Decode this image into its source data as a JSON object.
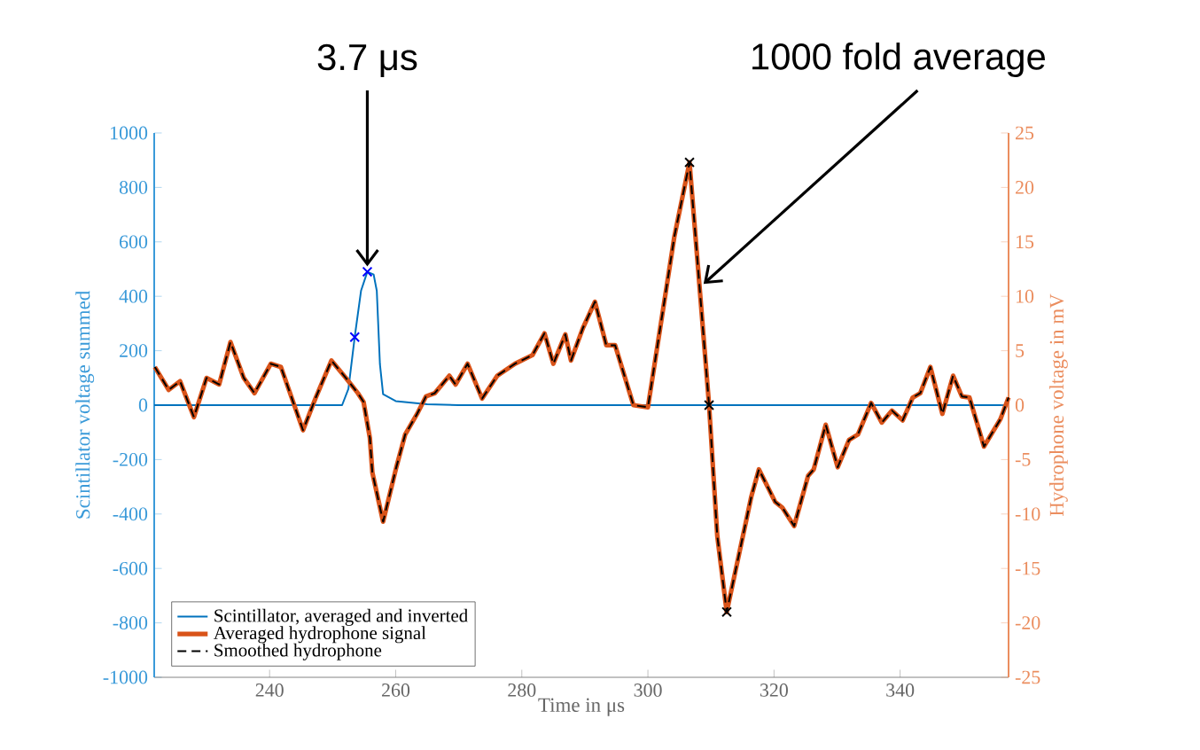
{
  "chart_data": {
    "type": "line",
    "xlabel": "Time in μs",
    "ylabel": "Scintillator voltage summed",
    "y2label": "Hydrophone voltage in mV",
    "annotations": [
      {
        "text": "3.7 μs",
        "x": 255.5,
        "y": 490
      },
      {
        "text": "1000 fold average",
        "x": 308.2,
        "y": 432
      }
    ],
    "xlim": [
      221.7,
      357.2
    ],
    "xticks": [
      240,
      260,
      280,
      300,
      320,
      340
    ],
    "ylim": [
      -1000,
      1000
    ],
    "yticks": [
      -1000,
      -800,
      -600,
      -400,
      -200,
      0,
      200,
      400,
      600,
      800,
      1000
    ],
    "y2lim": [
      -25,
      25
    ],
    "y2ticks": [
      -25,
      -20,
      -15,
      -10,
      -5,
      0,
      5,
      10,
      15,
      20,
      25
    ],
    "grid": false,
    "legend": "bottom left",
    "series": [
      {
        "name": "Scintillator, averaged and inverted",
        "color": "#0072bd",
        "x": [
          221.7,
          251.5,
          252.5,
          253.5,
          254.5,
          255.5,
          256.5,
          257,
          257.5,
          258,
          260,
          265,
          270,
          357.2
        ],
        "values": [
          0,
          0,
          60,
          250,
          420,
          490,
          480,
          420,
          150,
          40,
          15,
          3,
          0,
          0
        ]
      },
      {
        "name": "Averaged hydrophone signal",
        "color": "#d95319",
        "axis": "y2",
        "x": [
          221.8,
          224,
          225.8,
          228,
          230,
          232,
          233.8,
          235.9,
          237.6,
          240.2,
          241.8,
          245.3,
          247.4,
          249.8,
          252.1,
          254,
          254.9,
          255.9,
          256.3,
          258,
          260.1,
          261.5,
          263.4,
          264.8,
          266.2,
          268.5,
          269.5,
          271.4,
          273.7,
          276.1,
          278.9,
          281.7,
          283.6,
          285,
          286.9,
          287.8,
          289.7,
          291.6,
          293.4,
          294.8,
          297.7,
          300,
          304.2,
          306.6,
          309.7,
          311,
          312.5,
          316.4,
          317.6,
          320.2,
          321.3,
          323.2,
          325.4,
          326.3,
          328.2,
          330.1,
          331.9,
          333.3,
          335.4,
          337.1,
          338.7,
          340.4,
          342,
          343.2,
          344.8,
          346.7,
          348.4,
          349.8,
          351,
          353.3,
          355.9,
          357.2
        ],
        "values": [
          3.5,
          1.4,
          2.2,
          -1.1,
          2.5,
          1.9,
          5.8,
          2.5,
          1.1,
          3.8,
          3.5,
          -2.3,
          0.8,
          4.1,
          2.5,
          1.1,
          0.3,
          -3,
          -6.2,
          -10.7,
          -5.7,
          -2.7,
          -0.8,
          0.8,
          1.1,
          2.7,
          1.9,
          3.8,
          0.6,
          2.7,
          3.8,
          4.6,
          6.6,
          3.8,
          6.5,
          4.1,
          7.1,
          9.5,
          5.5,
          5.5,
          0,
          -0.2,
          15.5,
          22.3,
          0,
          -12,
          -19,
          -8.4,
          -5.9,
          -8.9,
          -9.4,
          -11.1,
          -6.5,
          -5.9,
          -1.8,
          -5.7,
          -3.2,
          -2.7,
          0.2,
          -1.6,
          -0.5,
          -1.4,
          0.7,
          1.1,
          3.5,
          -0.8,
          2.7,
          0.8,
          0.7,
          -3.8,
          -1.3,
          0.7
        ]
      },
      {
        "name": "Smoothed hydrophone",
        "color": "#000000",
        "axis": "y2",
        "line_style": "dashed",
        "x": [
          221.8,
          224,
          225.8,
          228,
          230,
          232,
          233.8,
          235.9,
          237.6,
          240.2,
          241.8,
          245.3,
          247.4,
          249.8,
          252.1,
          254,
          254.9,
          255.9,
          256.3,
          258,
          260.1,
          261.5,
          263.4,
          264.8,
          266.2,
          268.5,
          269.5,
          271.4,
          273.7,
          276.1,
          278.9,
          281.7,
          283.6,
          285,
          286.9,
          287.8,
          289.7,
          291.6,
          293.4,
          294.8,
          297.7,
          300,
          304.2,
          306.6,
          309.7,
          311,
          312.5,
          316.4,
          317.6,
          320.2,
          321.3,
          323.2,
          325.4,
          326.3,
          328.2,
          330.1,
          331.9,
          333.3,
          335.4,
          337.1,
          338.7,
          340.4,
          342,
          343.2,
          344.8,
          346.7,
          348.4,
          349.8,
          351,
          353.3,
          355.9,
          357.2
        ],
        "values": [
          3.5,
          1.4,
          2.2,
          -1.1,
          2.5,
          1.9,
          5.8,
          2.5,
          1.1,
          3.8,
          3.5,
          -2.3,
          0.8,
          4.1,
          2.5,
          1.1,
          0.3,
          -3,
          -6.2,
          -10.7,
          -5.7,
          -2.7,
          -0.8,
          0.8,
          1.1,
          2.7,
          1.9,
          3.8,
          0.6,
          2.7,
          3.8,
          4.6,
          6.6,
          3.8,
          6.5,
          4.1,
          7.1,
          9.5,
          5.5,
          5.5,
          0,
          -0.2,
          15.5,
          22.3,
          0,
          -12,
          -19,
          -8.4,
          -5.9,
          -8.9,
          -9.4,
          -11.1,
          -6.5,
          -5.9,
          -1.8,
          -5.7,
          -3.2,
          -2.7,
          0.2,
          -1.6,
          -0.5,
          -1.4,
          0.7,
          1.1,
          3.5,
          -0.8,
          2.7,
          0.8,
          0.7,
          -3.8,
          -1.3,
          0.7
        ]
      },
      {
        "type": "scatter",
        "marker": "cross",
        "color": "#0000ff",
        "x": [
          253.5,
          255.5
        ],
        "values": [
          250,
          490
        ]
      },
      {
        "type": "scatter",
        "marker": "cross",
        "color": "#000000",
        "axis": "y2",
        "x": [
          306.6,
          309.7,
          312.5
        ],
        "values": [
          22.3,
          0,
          -19
        ]
      }
    ]
  }
}
